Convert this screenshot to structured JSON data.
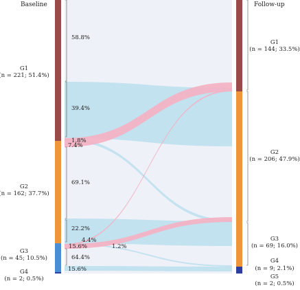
{
  "headers": {
    "left": "Baseline",
    "right": "Follow-up"
  },
  "colors": {
    "G1": "#9b4a4a",
    "G2": "#f0963a",
    "G3": "#4a8fd6",
    "G4": "#2d3e9e",
    "G5": "#2d3e9e",
    "flow_pink": "#f2b3c4",
    "flow_blue": "#bfe0ee",
    "band": "#eef1f7"
  },
  "baseline": [
    {
      "id": "G1",
      "name": "G1",
      "detail": "(n = 221; 51.4%)"
    },
    {
      "id": "G2",
      "name": "G2",
      "detail": "(n = 162; 37.7%)"
    },
    {
      "id": "G3",
      "name": "G3",
      "detail": "(n = 45; 10.5%)"
    },
    {
      "id": "G4",
      "name": "G4",
      "detail": "(n = 2; 0.5%)"
    }
  ],
  "followup": [
    {
      "id": "G1",
      "name": "G1",
      "detail": "(n = 144; 33.5%)"
    },
    {
      "id": "G2",
      "name": "G2",
      "detail": "(n = 206; 47.9%)"
    },
    {
      "id": "G3",
      "name": "G3",
      "detail": "(n = 69; 16.0%)"
    },
    {
      "id": "G4",
      "name": "G4",
      "detail": "(n = 9; 2.1%)"
    },
    {
      "id": "G5",
      "name": "G5",
      "detail": "(n = 2; 0.5%)"
    }
  ],
  "flows": [
    {
      "from": "G1",
      "to": "G1",
      "label": "58.8%"
    },
    {
      "from": "G1",
      "to": "G2",
      "label": "39.4%"
    },
    {
      "from": "G1",
      "to": "G3",
      "label": "1.8%"
    },
    {
      "from": "G2",
      "to": "G1",
      "label": "7.4%"
    },
    {
      "from": "G2",
      "to": "G2",
      "label": "69.1%"
    },
    {
      "from": "G2",
      "to": "G3",
      "label": "22.2%"
    },
    {
      "from": "G2",
      "to": "G4",
      "label": "1.2%"
    },
    {
      "from": "G3",
      "to": "G1",
      "label": "4.4%"
    },
    {
      "from": "G3",
      "to": "G2",
      "label": "15.6%"
    },
    {
      "from": "G3",
      "to": "G3",
      "label": "64.4%"
    },
    {
      "from": "G3",
      "to": "G4",
      "label": "15.6%"
    }
  ]
}
